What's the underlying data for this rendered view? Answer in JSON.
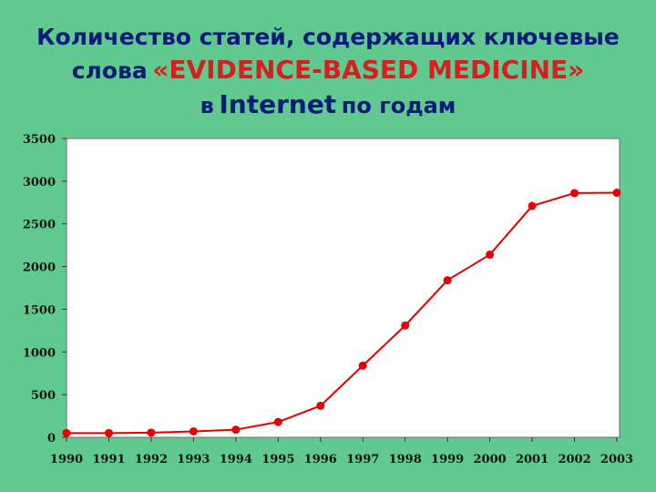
{
  "title": {
    "line1": "Количество статей, содержащих ключевые",
    "line2_prefix": "слова",
    "line2_keyword": "«EVIDENCE-BASED MEDICINE»",
    "line3_prefix": "в",
    "line3_main": "Internet",
    "line3_suffix": "по годам"
  },
  "colors": {
    "background": "#5fc98f",
    "plot_area": "#ffffff",
    "line": "#e60000",
    "title_text": "#0c1b7a",
    "title_keyword": "#d81f1f"
  },
  "chart_data": {
    "type": "line",
    "categories": [
      "1990",
      "1991",
      "1992",
      "1993",
      "1994",
      "1995",
      "1996",
      "1997",
      "1998",
      "1999",
      "2000",
      "2001",
      "2002",
      "2003"
    ],
    "series": [
      {
        "values": [
          50,
          50,
          55,
          70,
          90,
          180,
          370,
          840,
          1310,
          1840,
          2140,
          2710,
          2860,
          2865
        ]
      }
    ],
    "yticks": [
      "0",
      "500",
      "1000",
      "1500",
      "2000",
      "2500",
      "3000",
      "3500"
    ],
    "ylim": [
      0,
      3500
    ],
    "grid": false,
    "legend": "none",
    "xlabel": "",
    "ylabel": ""
  }
}
